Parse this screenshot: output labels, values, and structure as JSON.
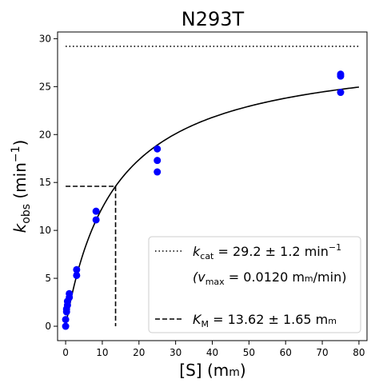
{
  "chart_data": {
    "type": "scatter",
    "title": "N293T",
    "xlabel": {
      "main": "[S] (m",
      "smallcap": "m",
      "close": ")"
    },
    "ylabel": {
      "k": "k",
      "sub": "obs",
      "unit": " (min",
      "sup": "−1",
      "close": ")"
    },
    "xlim": [
      -2.2,
      82.2
    ],
    "ylim": [
      -1.5,
      30.7
    ],
    "x_ticks": [
      0,
      10,
      20,
      30,
      40,
      50,
      60,
      70,
      80
    ],
    "y_ticks": [
      0,
      5,
      10,
      15,
      20,
      25,
      30
    ],
    "grid": false,
    "points": {
      "color": "#0000ff",
      "x": [
        0,
        0,
        0.25,
        0.25,
        0.5,
        0.5,
        1,
        1,
        3,
        3,
        8.3,
        8.3,
        25,
        25,
        25,
        75,
        75,
        75
      ],
      "y": [
        0.0,
        0.7,
        1.5,
        1.8,
        2.2,
        2.6,
        3.0,
        3.4,
        5.3,
        5.9,
        11.1,
        12.0,
        16.1,
        17.3,
        18.5,
        24.4,
        26.1,
        26.3
      ]
    },
    "fit": {
      "kcat": 29.2,
      "km": 13.62,
      "x_max": 80,
      "color": "#000000"
    },
    "kcat_line": {
      "y": 29.2,
      "x": [
        0,
        80
      ],
      "style": "dotted"
    },
    "km_lines": {
      "x": 13.62,
      "y": 14.6,
      "style": "dashed"
    },
    "legend": {
      "position": "lower-right",
      "kcat": {
        "k": "k",
        "sub": "cat",
        "text": " = 29.2 ± 1.2 min",
        "sup": "−1"
      },
      "vmax": {
        "open": "(v",
        "sub": "max",
        "text": " = 0.0120 m",
        "smallcap": "m",
        "close": "/min)"
      },
      "km": {
        "k": "K",
        "sub": "M",
        "text": " = 13.62 ± 1.65 m",
        "smallcap": "m"
      }
    }
  }
}
